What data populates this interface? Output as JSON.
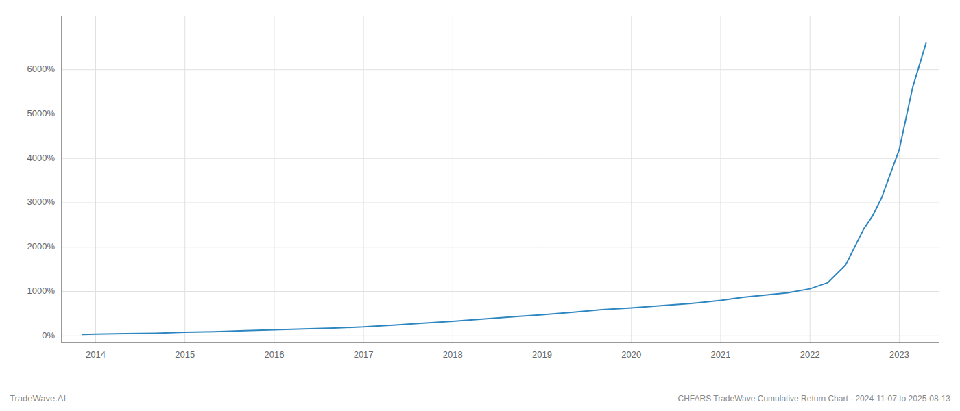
{
  "chart_data": {
    "type": "line",
    "title": "CHFARS TradeWave Cumulative Return Chart - 2024-11-07 to 2025-08-13",
    "annotations": [
      "TradeWave.AI"
    ],
    "x": [
      2013.85,
      2014.0,
      2014.33,
      2014.67,
      2015.0,
      2015.33,
      2015.67,
      2016.0,
      2016.33,
      2016.67,
      2017.0,
      2017.33,
      2017.67,
      2018.0,
      2018.33,
      2018.67,
      2019.0,
      2019.33,
      2019.67,
      2020.0,
      2020.33,
      2020.67,
      2021.0,
      2021.25,
      2021.5,
      2021.75,
      2022.0,
      2022.2,
      2022.4,
      2022.6,
      2022.7,
      2022.8,
      2023.0,
      2023.15,
      2023.3
    ],
    "values": [
      30,
      40,
      50,
      60,
      80,
      95,
      115,
      135,
      155,
      175,
      200,
      240,
      285,
      330,
      380,
      430,
      475,
      530,
      590,
      630,
      680,
      730,
      800,
      870,
      920,
      970,
      1060,
      1200,
      1600,
      2400,
      2700,
      3100,
      4200,
      5600,
      6600
    ],
    "color": "#2e86c1",
    "xlim": [
      2013.62,
      2023.45
    ],
    "xticks": [
      2014,
      2015,
      2016,
      2017,
      2018,
      2019,
      2020,
      2021,
      2022,
      2023
    ],
    "ylim": [
      -150,
      7200
    ],
    "yticks": [
      {
        "value": 0,
        "label": "0%"
      },
      {
        "value": 1000,
        "label": "1000%"
      },
      {
        "value": 2000,
        "label": "2000%"
      },
      {
        "value": 3000,
        "label": "3000%"
      },
      {
        "value": 4000,
        "label": "4000%"
      },
      {
        "value": 5000,
        "label": "5000%"
      },
      {
        "value": 6000,
        "label": "6000%"
      }
    ],
    "grid": true
  }
}
